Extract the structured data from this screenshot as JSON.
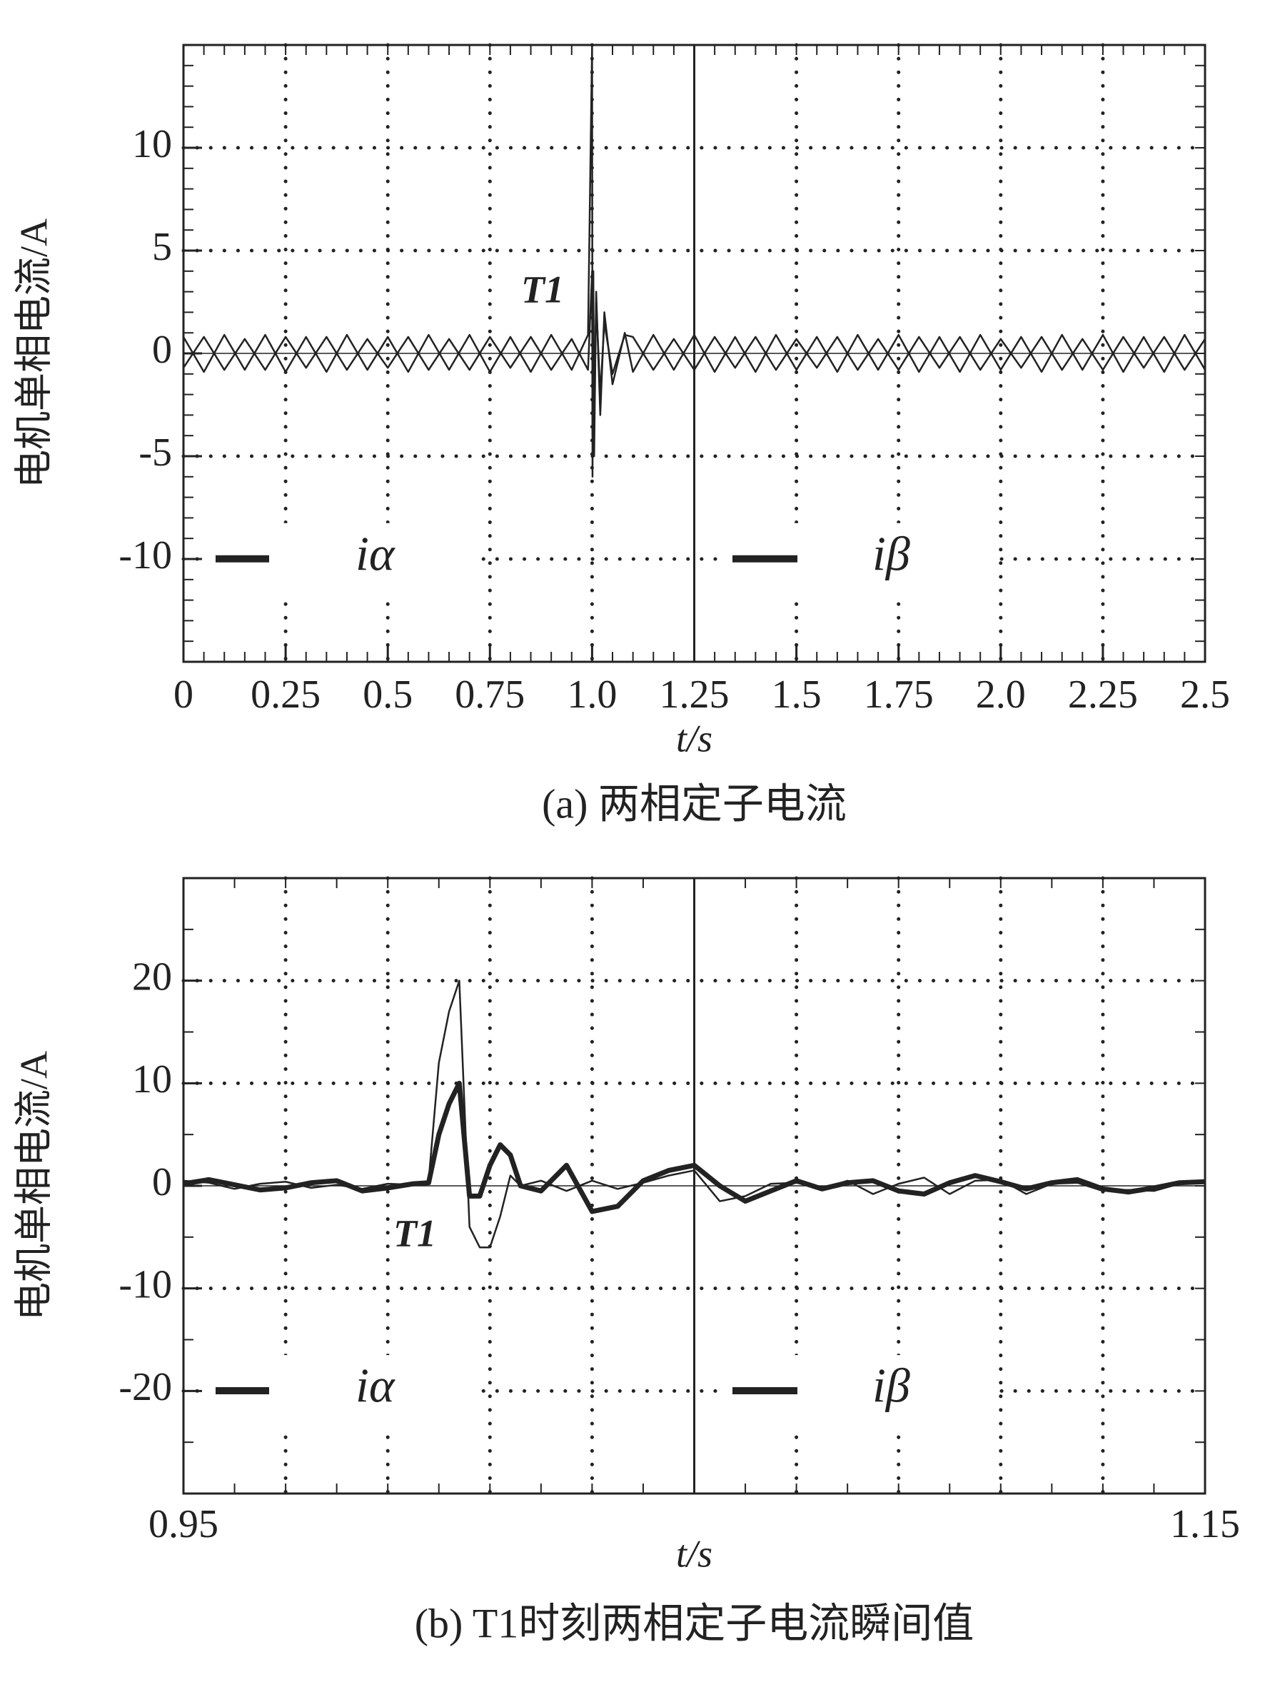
{
  "chart_data": [
    {
      "type": "line",
      "caption": "(a) 两相定子电流",
      "xlabel": "t/s",
      "ylabel": "电机单相电流/A",
      "annotation": "T1",
      "xlim": [
        0,
        2.5
      ],
      "xticks": [
        0,
        0.25,
        0.5,
        0.75,
        {
          "value": 1,
          "label": "1.0"
        },
        1.25,
        1.5,
        1.75,
        {
          "value": 2,
          "label": "2.0"
        },
        2.25,
        2.5
      ],
      "ylim": [
        -15,
        15
      ],
      "yticks": [
        -10,
        -5,
        0,
        5,
        10
      ],
      "grid": true,
      "x": [
        0,
        0.05,
        0.1,
        0.15,
        0.2,
        0.25,
        0.3,
        0.35,
        0.4,
        0.45,
        0.5,
        0.55,
        0.6,
        0.65,
        0.7,
        0.75,
        0.8,
        0.85,
        0.9,
        0.95,
        0.99,
        1.0,
        1.001,
        1.003,
        1.005,
        1.01,
        1.02,
        1.03,
        1.05,
        1.08,
        1.1,
        1.15,
        1.2,
        1.25,
        1.3,
        1.35,
        1.4,
        1.45,
        1.5,
        1.55,
        1.6,
        1.65,
        1.7,
        1.75,
        1.8,
        1.85,
        1.9,
        1.95,
        2.0,
        2.05,
        2.1,
        2.15,
        2.2,
        2.25,
        2.3,
        2.35,
        2.4,
        2.45,
        2.5
      ],
      "series": [
        {
          "name": "iα",
          "color": "#222222",
          "values": [
            0.8,
            -0.9,
            0.9,
            -0.8,
            0.9,
            -0.9,
            0.8,
            -0.9,
            0.9,
            -0.8,
            0.8,
            -0.9,
            0.9,
            -0.8,
            0.9,
            -0.9,
            0.8,
            -0.9,
            0.9,
            -0.8,
            0.9,
            15,
            -6,
            4,
            -5,
            3,
            -3,
            2,
            -1.5,
            1,
            -0.9,
            0.9,
            -0.8,
            0.9,
            -0.9,
            0.8,
            -0.9,
            0.9,
            -0.8,
            0.8,
            -0.9,
            0.9,
            -0.8,
            0.9,
            -0.9,
            0.8,
            -0.9,
            0.9,
            -0.8,
            0.8,
            -0.9,
            0.9,
            -0.8,
            0.9,
            -0.9,
            0.8,
            -0.9,
            0.9,
            -0.8
          ]
        },
        {
          "name": "iβ",
          "color": "#222222",
          "values": [
            -0.7,
            0.8,
            -0.8,
            0.7,
            -0.8,
            0.8,
            -0.7,
            0.8,
            -0.8,
            0.7,
            -0.7,
            0.8,
            -0.8,
            0.7,
            -0.8,
            0.8,
            -0.7,
            0.8,
            -0.8,
            0.7,
            -0.8,
            4,
            -4,
            3,
            -3,
            2.5,
            -2,
            1.5,
            -1,
            0.9,
            0.8,
            -0.8,
            0.7,
            -0.8,
            0.8,
            -0.7,
            0.8,
            -0.8,
            0.7,
            -0.7,
            0.8,
            -0.8,
            0.7,
            -0.8,
            0.8,
            -0.7,
            0.8,
            -0.8,
            0.7,
            -0.7,
            0.8,
            -0.8,
            0.7,
            -0.8,
            0.8,
            -0.7,
            0.8,
            -0.8,
            0.7
          ]
        }
      ]
    },
    {
      "type": "line",
      "caption": "(b) T1时刻两相定子电流瞬间值",
      "xlabel": "t/s",
      "ylabel": "电机单相电流/A",
      "annotation": "T1",
      "xlim": [
        0.95,
        1.15
      ],
      "xticks": [
        0.95,
        1.15
      ],
      "ylim": [
        -30,
        30
      ],
      "yticks": [
        -20,
        -10,
        0,
        10,
        20
      ],
      "grid": true,
      "x": [
        0.95,
        0.955,
        0.96,
        0.965,
        0.97,
        0.975,
        0.98,
        0.985,
        0.99,
        0.995,
        0.998,
        1.0,
        1.002,
        1.004,
        1.006,
        1.008,
        1.01,
        1.012,
        1.014,
        1.016,
        1.02,
        1.025,
        1.03,
        1.035,
        1.04,
        1.045,
        1.05,
        1.055,
        1.06,
        1.065,
        1.07,
        1.075,
        1.08,
        1.085,
        1.09,
        1.095,
        1.1,
        1.105,
        1.11,
        1.115,
        1.12,
        1.125,
        1.13,
        1.135,
        1.14,
        1.145,
        1.15
      ],
      "series": [
        {
          "name": "iα",
          "color": "#222222",
          "values": [
            0.5,
            0.3,
            -0.3,
            0.2,
            0.4,
            -0.2,
            0.1,
            -0.3,
            0.2,
            0.1,
            0.5,
            12,
            17,
            20,
            -4,
            -6,
            -6,
            -3,
            1,
            0,
            0.5,
            -0.5,
            0.5,
            -0.3,
            0.3,
            1,
            1.5,
            -1.5,
            -1,
            0.2,
            0.3,
            -0.3,
            0.5,
            -0.8,
            0.2,
            0.8,
            -0.8,
            0.5,
            0.6,
            -0.8,
            0.2,
            0.3,
            -0.5,
            -0.4,
            -0.5,
            0.2,
            0.5
          ]
        },
        {
          "name": "iβ",
          "color": "#222222",
          "values": [
            0.2,
            0.6,
            0.1,
            -0.4,
            -0.2,
            0.3,
            0.5,
            -0.5,
            -0.2,
            0.2,
            0.3,
            5,
            8,
            10,
            -1,
            -1,
            2,
            4,
            3,
            0,
            -0.5,
            2,
            -2.5,
            -2,
            0.5,
            1.5,
            2,
            0,
            -1.5,
            -0.5,
            0.5,
            -0.3,
            0.3,
            0.5,
            -0.5,
            -0.8,
            0.3,
            1,
            0.4,
            -0.3,
            0.3,
            0.6,
            -0.3,
            -0.6,
            -0.2,
            0.3,
            0.4
          ]
        }
      ]
    }
  ]
}
